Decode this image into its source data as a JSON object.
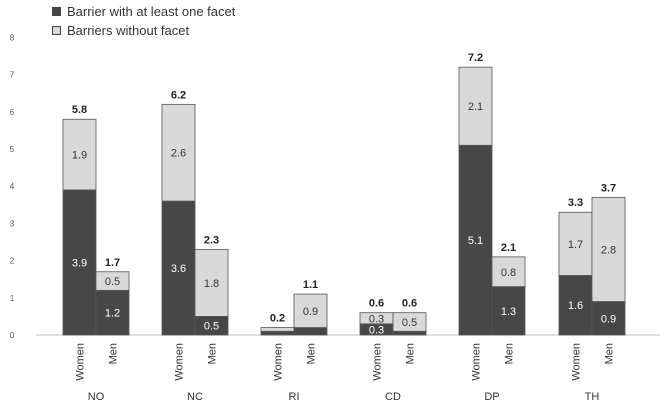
{
  "chart_data": {
    "type": "bar",
    "stacked": true,
    "groups": [
      "NO",
      "NC",
      "RI",
      "CD",
      "DP",
      "TH"
    ],
    "subcategories": [
      "Women",
      "Men"
    ],
    "ylim": [
      0,
      8
    ],
    "yticks": [
      0,
      1,
      2,
      3,
      4,
      5,
      6,
      7,
      8
    ],
    "legend_position": "top-left",
    "series": [
      {
        "name": "Barrier with at least one facet",
        "color": "#474747",
        "values": [
          3.9,
          1.2,
          3.6,
          0.5,
          0.1,
          0.2,
          0.3,
          0.1,
          5.1,
          1.3,
          1.6,
          0.9
        ],
        "labels": [
          "3.9",
          "1.2",
          "3.6",
          "0.5",
          "",
          "",
          "0.3",
          "",
          "5.1",
          "1.3",
          "1.6",
          "0.9"
        ]
      },
      {
        "name": "Barriers without facet",
        "color": "#d9d9d9",
        "values": [
          1.9,
          0.5,
          2.6,
          1.8,
          0.1,
          0.9,
          0.3,
          0.5,
          2.1,
          0.8,
          1.7,
          2.8
        ],
        "labels": [
          "1.9",
          "0.5",
          "2.6",
          "1.8",
          "",
          "0.9",
          "0.3",
          "0.5",
          "2.1",
          "0.8",
          "1.7",
          "2.8"
        ]
      }
    ],
    "totals": [
      "5.8",
      "1.7",
      "6.2",
      "2.3",
      "0.2",
      "1.1",
      "0.6",
      "0.6",
      "7.2",
      "2.1",
      "3.3",
      "3.7"
    ],
    "grid": false
  },
  "legend": {
    "items": [
      {
        "label": "Barrier with at least one facet",
        "color": "#474747"
      },
      {
        "label": "Barriers without facet",
        "color": "#d9d9d9"
      }
    ]
  }
}
